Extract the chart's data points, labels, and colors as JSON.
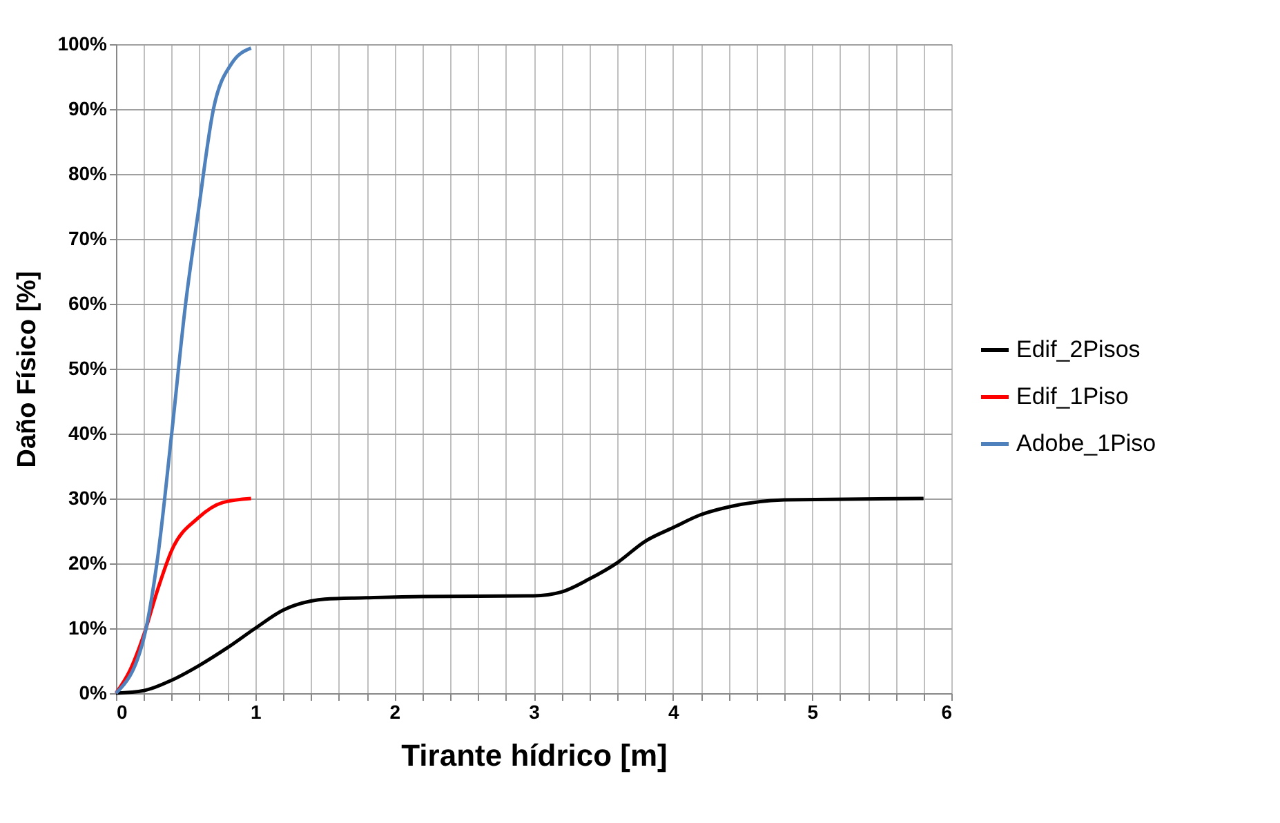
{
  "chart_data": {
    "type": "line",
    "xlabel": "Tirante hídrico [m]",
    "ylabel": "Daño Físico [%]",
    "xlim": [
      0,
      6
    ],
    "xticks": [
      0,
      {
        "value": 0.2,
        "label": null
      },
      {
        "value": 0.4,
        "label": null
      },
      {
        "value": 0.6,
        "label": null
      },
      {
        "value": 0.8,
        "label": null
      },
      1,
      {
        "value": 1.2,
        "label": null
      },
      {
        "value": 1.4,
        "label": null
      },
      {
        "value": 1.6,
        "label": null
      },
      {
        "value": 1.8,
        "label": null
      },
      2,
      {
        "value": 2.2,
        "label": null
      },
      {
        "value": 2.4,
        "label": null
      },
      {
        "value": 2.6,
        "label": null
      },
      {
        "value": 2.8,
        "label": null
      },
      3,
      {
        "value": 3.2,
        "label": null
      },
      {
        "value": 3.4,
        "label": null
      },
      {
        "value": 3.6,
        "label": null
      },
      {
        "value": 3.8,
        "label": null
      },
      4,
      {
        "value": 4.2,
        "label": null
      },
      {
        "value": 4.4,
        "label": null
      },
      {
        "value": 4.6,
        "label": null
      },
      {
        "value": 4.8,
        "label": null
      },
      5,
      {
        "value": 5.2,
        "label": null
      },
      {
        "value": 5.4,
        "label": null
      },
      {
        "value": 5.6,
        "label": null
      },
      {
        "value": 5.8,
        "label": null
      },
      6
    ],
    "ylim": [
      0,
      100
    ],
    "yticks": [
      {
        "value": 0,
        "label": "0%"
      },
      {
        "value": 10,
        "label": "10%"
      },
      {
        "value": 20,
        "label": "20%"
      },
      {
        "value": 30,
        "label": "30%"
      },
      {
        "value": 40,
        "label": "40%"
      },
      {
        "value": 50,
        "label": "50%"
      },
      {
        "value": 60,
        "label": "60%"
      },
      {
        "value": 70,
        "label": "70%"
      },
      {
        "value": 80,
        "label": "80%"
      },
      {
        "value": 90,
        "label": "90%"
      },
      {
        "value": 100,
        "label": "100%"
      }
    ],
    "grid": true,
    "legend": "right",
    "marker": "none",
    "line_style": "solid",
    "series": [
      {
        "name": "Edif_2Pisos",
        "color": "#000000",
        "x": [
          0,
          0.2,
          0.4,
          0.6,
          0.8,
          1.0,
          1.2,
          1.4,
          1.5,
          1.8,
          2.2,
          3.0,
          3.2,
          3.4,
          3.6,
          3.8,
          4.0,
          4.2,
          4.4,
          4.8,
          5.8
        ],
        "values": [
          0,
          0.4,
          2,
          4.3,
          7,
          10,
          12.8,
          14.2,
          14.5,
          14.7,
          14.9,
          15,
          15.6,
          17.6,
          20.1,
          23.4,
          25.5,
          27.5,
          28.7,
          29.8,
          30
        ]
      },
      {
        "name": "Edif_1Piso",
        "color": "#ff0000",
        "x": [
          0,
          0.1,
          0.2,
          0.3,
          0.4,
          0.59,
          0.77,
          0.97
        ],
        "values": [
          0,
          3.5,
          9,
          16,
          22,
          27,
          29.4,
          30
        ]
      },
      {
        "name": "Adobe_1Piso",
        "color": "#4f81bd",
        "x": [
          0,
          0.2,
          0.3,
          0.4,
          0.5,
          0.59,
          0.7,
          0.83,
          0.97
        ],
        "values": [
          0,
          8.5,
          21,
          40,
          60,
          74,
          90,
          97,
          99.4
        ]
      }
    ]
  }
}
